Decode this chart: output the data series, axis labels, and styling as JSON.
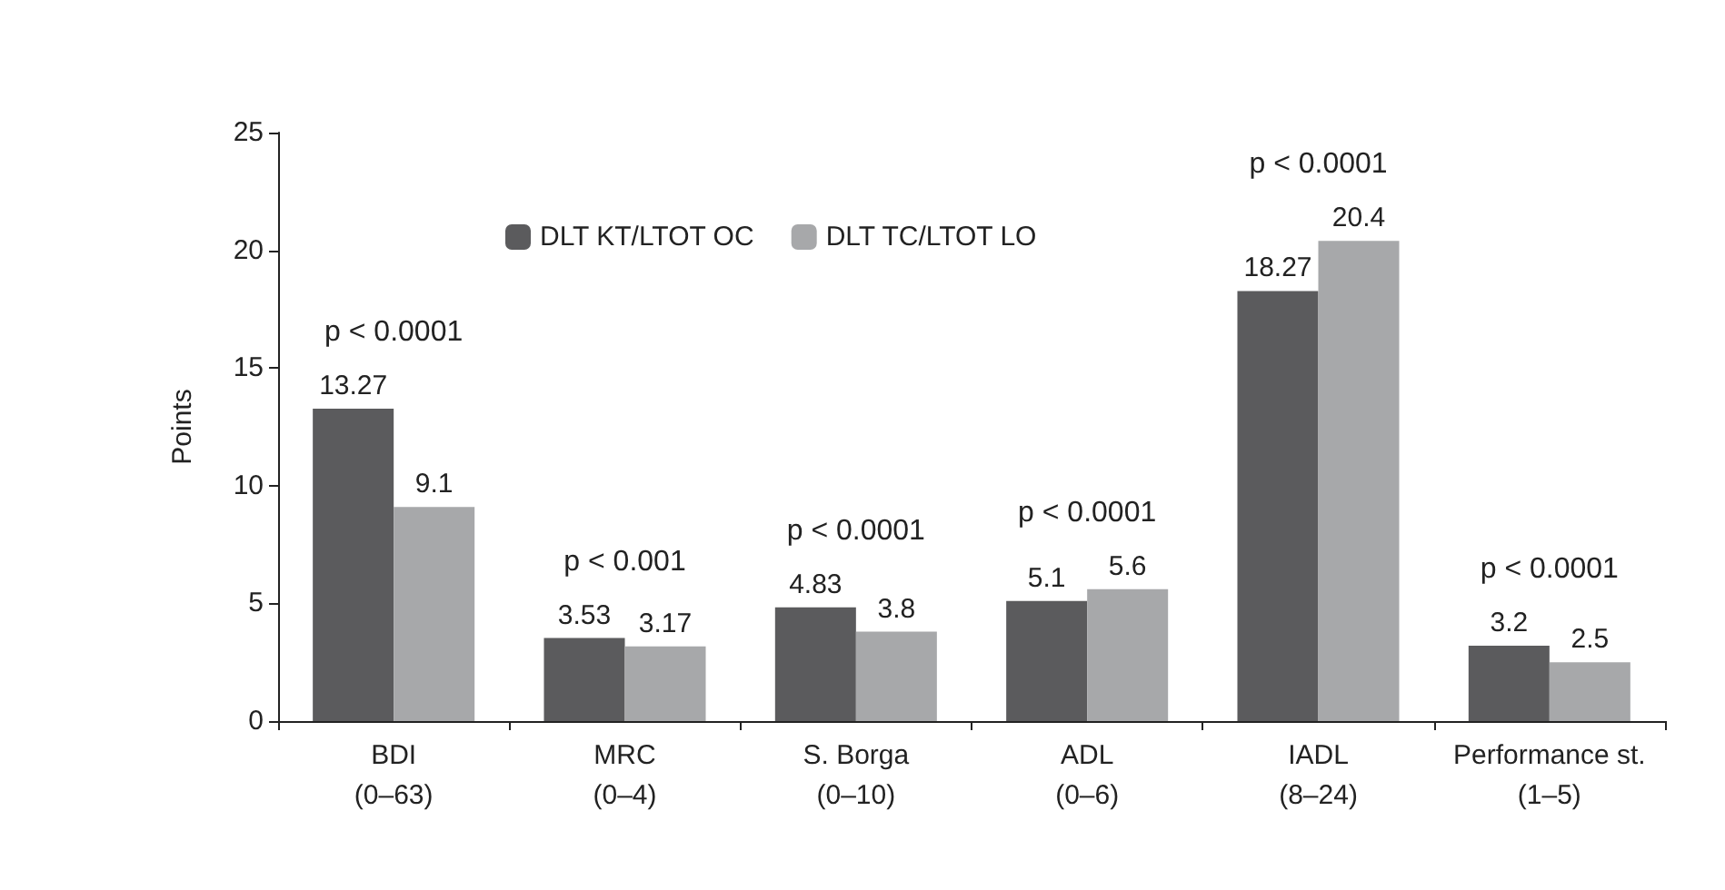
{
  "chart_data": {
    "type": "bar",
    "ylabel": "Points",
    "categories": [
      "BDI\n(0–63)",
      "MRC\n(0–4)",
      "S. Borga\n(0–10)",
      "ADL\n(0–6)",
      "IADL\n(8–24)",
      "Performance st.\n(1–5)"
    ],
    "series": [
      {
        "name": "DLT KT/LTOT OC",
        "color": "#5b5b5d",
        "values": [
          13.27,
          3.53,
          4.83,
          5.1,
          18.27,
          3.2
        ]
      },
      {
        "name": "DLT TC/LTOT LO",
        "color": "#a7a8aa",
        "values": [
          9.1,
          3.17,
          3.8,
          5.6,
          20.4,
          2.5
        ]
      }
    ],
    "ylim": [
      0,
      25
    ],
    "yticks": [
      0,
      5,
      10,
      15,
      20,
      25
    ],
    "grid": false,
    "legend": "top",
    "data_labels": true,
    "annotations": [
      "p < 0.0001",
      "p < 0.001",
      "p < 0.0001",
      "p < 0.0001",
      "p < 0.0001",
      "p < 0.0001"
    ]
  }
}
